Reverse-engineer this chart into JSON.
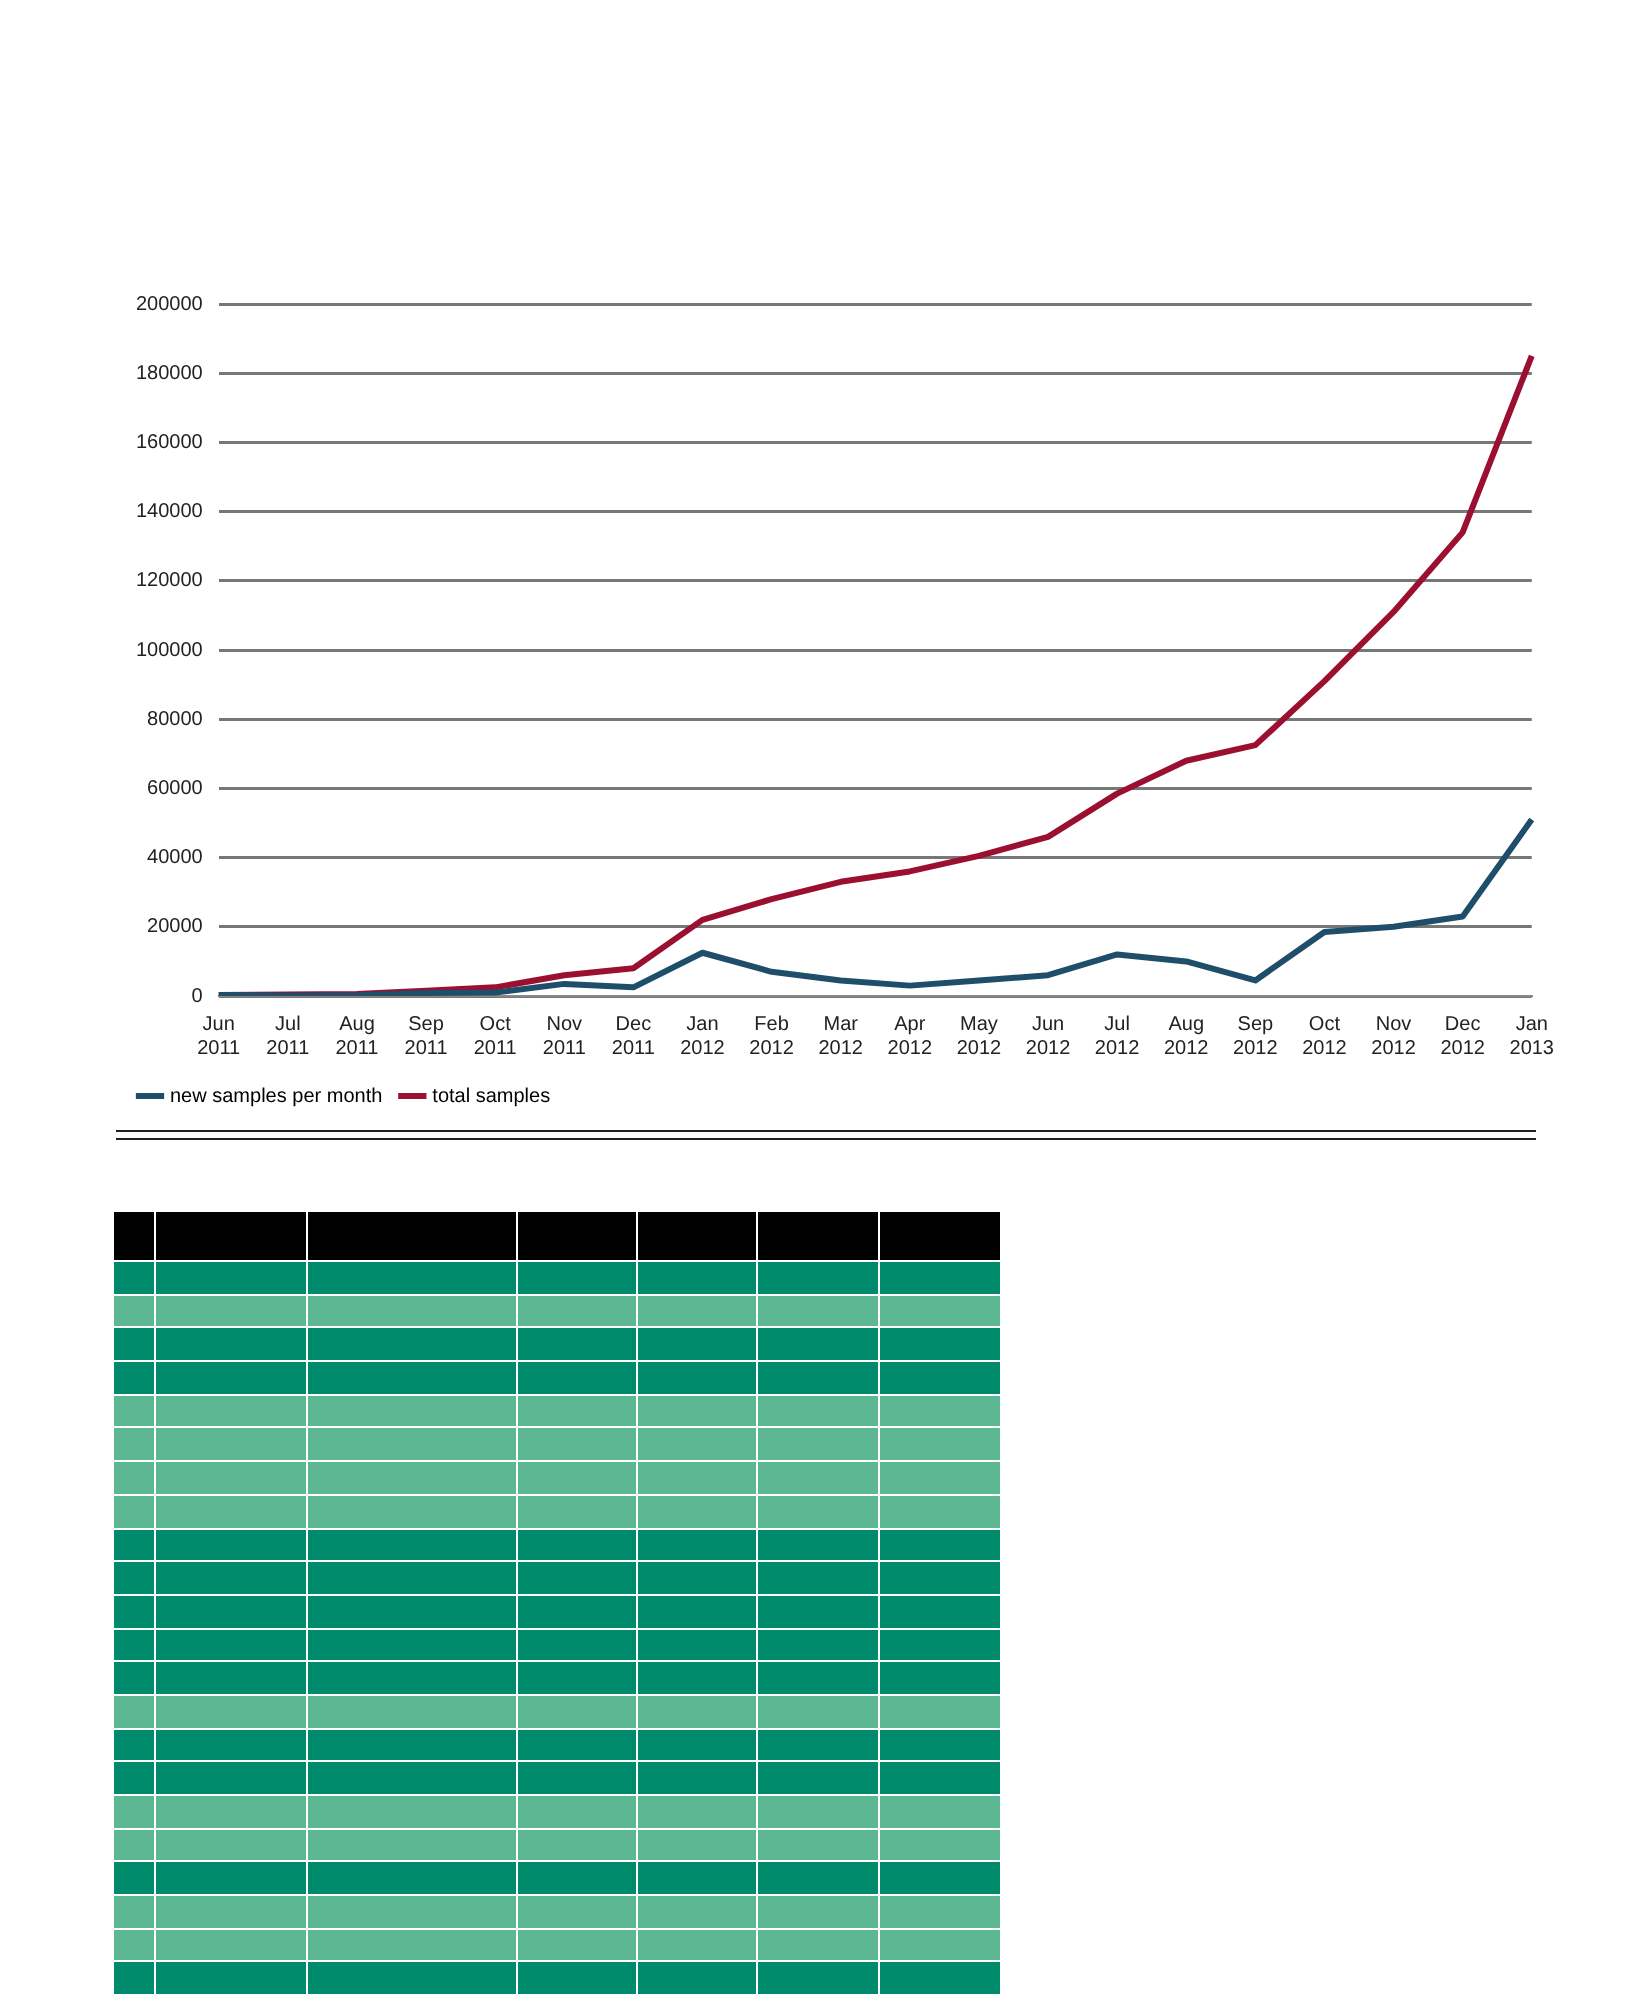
{
  "chart_data": {
    "type": "line",
    "categories": [
      "Jun 2011",
      "Jul 2011",
      "Aug 2011",
      "Sep 2011",
      "Oct 2011",
      "Nov 2011",
      "Dec 2011",
      "Jan 2012",
      "Feb 2012",
      "Mar 2012",
      "Apr 2012",
      "May 2012",
      "Jun 2012",
      "Jul 2012",
      "Aug 2012",
      "Sep 2012",
      "Oct 2012",
      "Nov 2012",
      "Dec 2012",
      "Jan 2013"
    ],
    "series": [
      {
        "name": "new samples per month",
        "color": "#1f4e6b",
        "values": [
          300,
          100,
          200,
          900,
          1000,
          3500,
          2500,
          12500,
          7000,
          4500,
          3000,
          4500,
          6000,
          12000,
          10000,
          4500,
          18500,
          20000,
          23000,
          51000
        ]
      },
      {
        "name": "total samples",
        "color": "#9b1030",
        "values": [
          300,
          400,
          600,
          1500,
          2500,
          6000,
          8000,
          22000,
          28000,
          33000,
          36000,
          40500,
          46000,
          58500,
          68000,
          72500,
          91000,
          111000,
          134000,
          185000
        ]
      }
    ],
    "ylim": [
      0,
      200000
    ],
    "yticks": [
      0,
      20000,
      40000,
      60000,
      80000,
      100000,
      120000,
      140000,
      160000,
      180000,
      200000
    ],
    "grid": "y",
    "legend": "bottom left",
    "marker": "none",
    "line_style": "solid"
  }
}
